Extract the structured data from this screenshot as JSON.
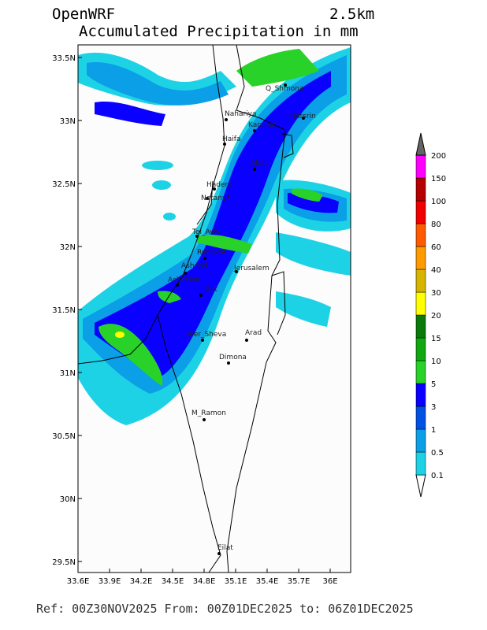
{
  "header": {
    "model": "OpenWRF",
    "resolution": "2.5km",
    "title": "Accumulated Precipitation in mm"
  },
  "map": {
    "lon_ticks": [
      {
        "value": 33.6,
        "label": "33.6E"
      },
      {
        "value": 33.9,
        "label": "33.9E"
      },
      {
        "value": 34.2,
        "label": "34.2E"
      },
      {
        "value": 34.5,
        "label": "34.5E"
      },
      {
        "value": 34.8,
        "label": "34.8E"
      },
      {
        "value": 35.1,
        "label": "35.1E"
      },
      {
        "value": 35.4,
        "label": "35.4E"
      },
      {
        "value": 35.7,
        "label": "35.7E"
      },
      {
        "value": 36,
        "label": "36E"
      }
    ],
    "lat_ticks": [
      {
        "value": 33.5,
        "label": "33.5N"
      },
      {
        "value": 33,
        "label": "33N"
      },
      {
        "value": 32.5,
        "label": "32.5N"
      },
      {
        "value": 32,
        "label": "32N"
      },
      {
        "value": 31.5,
        "label": "31.5N"
      },
      {
        "value": 31,
        "label": "31N"
      },
      {
        "value": 30.5,
        "label": "30.5N"
      },
      {
        "value": 30,
        "label": "30N"
      },
      {
        "value": 29.5,
        "label": "29.5N"
      }
    ],
    "cities": [
      "Q_Shmona",
      "Nahariya",
      "Karmiel",
      "Qatsrin",
      "Haifa",
      "Afula",
      "Hadera",
      "Netanya",
      "Tel_Aviv",
      "Rehovot",
      "Ashdod",
      "Jerusalem",
      "Ashkelon",
      "Gat",
      "Beer_Sheva",
      "Arad",
      "Dimona",
      "M_Ramon",
      "Eilat"
    ]
  },
  "colorbar": {
    "levels": [
      0.1,
      0.5,
      1,
      3,
      5,
      10,
      15,
      20,
      30,
      40,
      60,
      80,
      100,
      150,
      200
    ],
    "colors": [
      "#1ed2e6",
      "#0a9fe6",
      "#0050e6",
      "#0a00ff",
      "#28d228",
      "#10a810",
      "#0a7a0a",
      "#ffff00",
      "#d7b400",
      "#ff9a00",
      "#ff5a00",
      "#f00000",
      "#b40000",
      "#ff00ff",
      "#9a64c8"
    ],
    "over_color": "#646464"
  },
  "footer": "Ref: 00Z30NOV2025  From: 00Z01DEC2025  to: 06Z01DEC2025"
}
